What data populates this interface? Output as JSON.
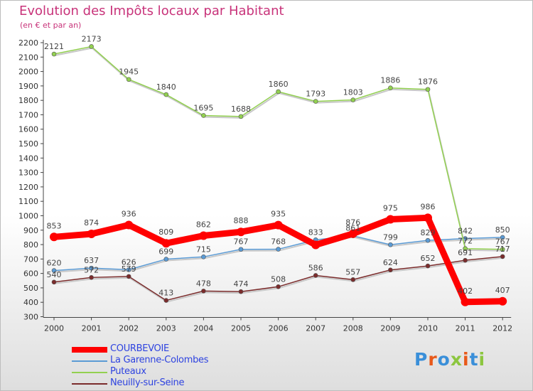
{
  "title": "Evolution des Impôts locaux par Habitant",
  "subtitle": "(en € et par an)",
  "logo": {
    "text": "Proxiti",
    "colors": [
      "#3a8fd9",
      "#e8591a",
      "#3a8fd9",
      "#8cc63f",
      "#e8591a",
      "#3a8fd9",
      "#8cc63f"
    ]
  },
  "chart_data": {
    "type": "line",
    "title": "Evolution des Impôts locaux par Habitant",
    "subtitle": "(en € et par an)",
    "x": [
      "2000",
      "2001",
      "2002",
      "2003",
      "2004",
      "2005",
      "2006",
      "2007",
      "2008",
      "2009",
      "2010",
      "2011",
      "2012"
    ],
    "ylim": [
      300,
      2200
    ],
    "yticks": [
      300,
      400,
      500,
      600,
      700,
      800,
      900,
      1000,
      1100,
      1200,
      1300,
      1400,
      1500,
      1600,
      1700,
      1800,
      1900,
      2000,
      2100,
      2200
    ],
    "grid": false,
    "legend_position": "bottom-left",
    "series": [
      {
        "name": "COURBEVOIE",
        "color": "#ff0000",
        "values": [
          853,
          874,
          936,
          809,
          862,
          888,
          935,
          798,
          876,
          975,
          986,
          402,
          407
        ],
        "labels": [
          "853",
          "874",
          "936",
          "809",
          "862",
          "888",
          "935",
          "",
          "876",
          "975",
          "986",
          "402",
          "407"
        ]
      },
      {
        "name": "La Garenne-Colombes",
        "color": "#5b9bd5",
        "values": [
          620,
          637,
          626,
          699,
          715,
          767,
          768,
          833,
          861,
          799,
          829,
          842,
          850
        ],
        "labels": [
          "620",
          "637",
          "626",
          "699",
          "715",
          "767",
          "768",
          "833",
          "861",
          "799",
          "829",
          "842",
          "850"
        ]
      },
      {
        "name": "Puteaux",
        "color": "#92d050",
        "values": [
          2121,
          2173,
          1945,
          1840,
          1695,
          1688,
          1860,
          1793,
          1803,
          1886,
          1876,
          772,
          767
        ],
        "labels": [
          "2121",
          "2173",
          "1945",
          "1840",
          "1695",
          "1688",
          "1860",
          "1793",
          "1803",
          "1886",
          "1876",
          "772",
          "767"
        ]
      },
      {
        "name": "Neuilly-sur-Seine",
        "color": "#7b2c2c",
        "values": [
          540,
          572,
          579,
          413,
          478,
          474,
          508,
          586,
          557,
          624,
          652,
          691,
          717
        ],
        "labels": [
          "540",
          "572",
          "579",
          "413",
          "478",
          "474",
          "508",
          "586",
          "557",
          "624",
          "652",
          "691",
          "717"
        ]
      }
    ]
  }
}
